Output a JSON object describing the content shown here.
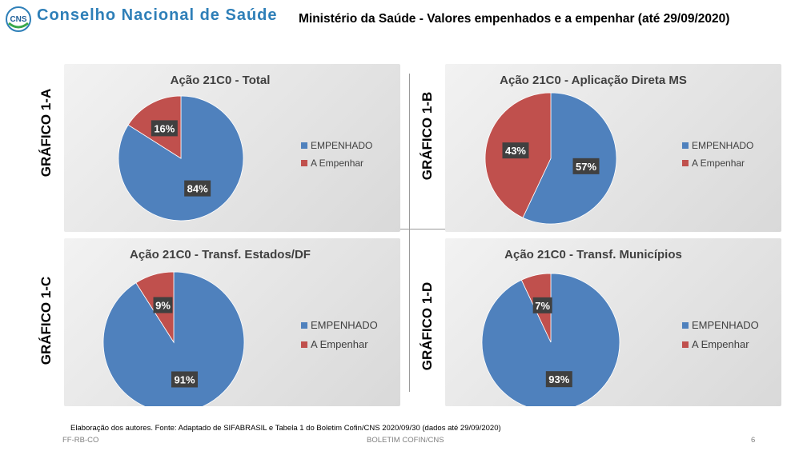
{
  "header": {
    "logo_text": "CNS",
    "org_name": "Conselho Nacional de Saúde",
    "title": "Ministério da Saúde - Valores empenhados e a empenhar (até 29/09/2020)"
  },
  "colors": {
    "empenhado": "#4f81bd",
    "a_empenhar": "#c0504d"
  },
  "chart_data": [
    {
      "type": "pie",
      "label": "GRÁFICO 1-A",
      "title": "Ação 21C0 - Total",
      "categories": [
        "EMPENHADO",
        "A Empenhar"
      ],
      "values": [
        84,
        16
      ],
      "value_labels": [
        "84%",
        "16%"
      ],
      "legend": [
        "EMPENHADO",
        "A Empenhar"
      ],
      "legend_position": "right"
    },
    {
      "type": "pie",
      "label": "GRÁFICO 1-B",
      "title": "Ação 21C0 - Aplicação Direta MS",
      "categories": [
        "EMPENHADO",
        "A Empenhar"
      ],
      "values": [
        57,
        43
      ],
      "value_labels": [
        "57%",
        "43%"
      ],
      "legend": [
        "EMPENHADO",
        "A Empenhar"
      ],
      "legend_position": "right"
    },
    {
      "type": "pie",
      "label": "GRÁFICO 1-C",
      "title": "Ação 21C0 - Transf. Estados/DF",
      "categories": [
        "EMPENHADO",
        "A Empenhar"
      ],
      "values": [
        91,
        9
      ],
      "value_labels": [
        "91%",
        "9%"
      ],
      "legend": [
        "EMPENHADO",
        "A Empenhar"
      ],
      "legend_position": "right"
    },
    {
      "type": "pie",
      "label": "GRÁFICO 1-D",
      "title": "Ação 21C0 - Transf. Municípios",
      "categories": [
        "EMPENHADO",
        "A Empenhar"
      ],
      "values": [
        93,
        7
      ],
      "value_labels": [
        "93%",
        "7%"
      ],
      "legend": [
        "EMPENHADO",
        "A Empenhar"
      ],
      "legend_position": "right"
    }
  ],
  "source": "Elaboração dos autores. Fonte: Adaptado de SIFABRASIL e Tabela 1 do Boletim Cofin/CNS 2020/09/30 (dados até 29/09/2020)",
  "footer": {
    "left": "FF-RB-CO",
    "center": "BOLETIM COFIN/CNS",
    "right": "6"
  }
}
